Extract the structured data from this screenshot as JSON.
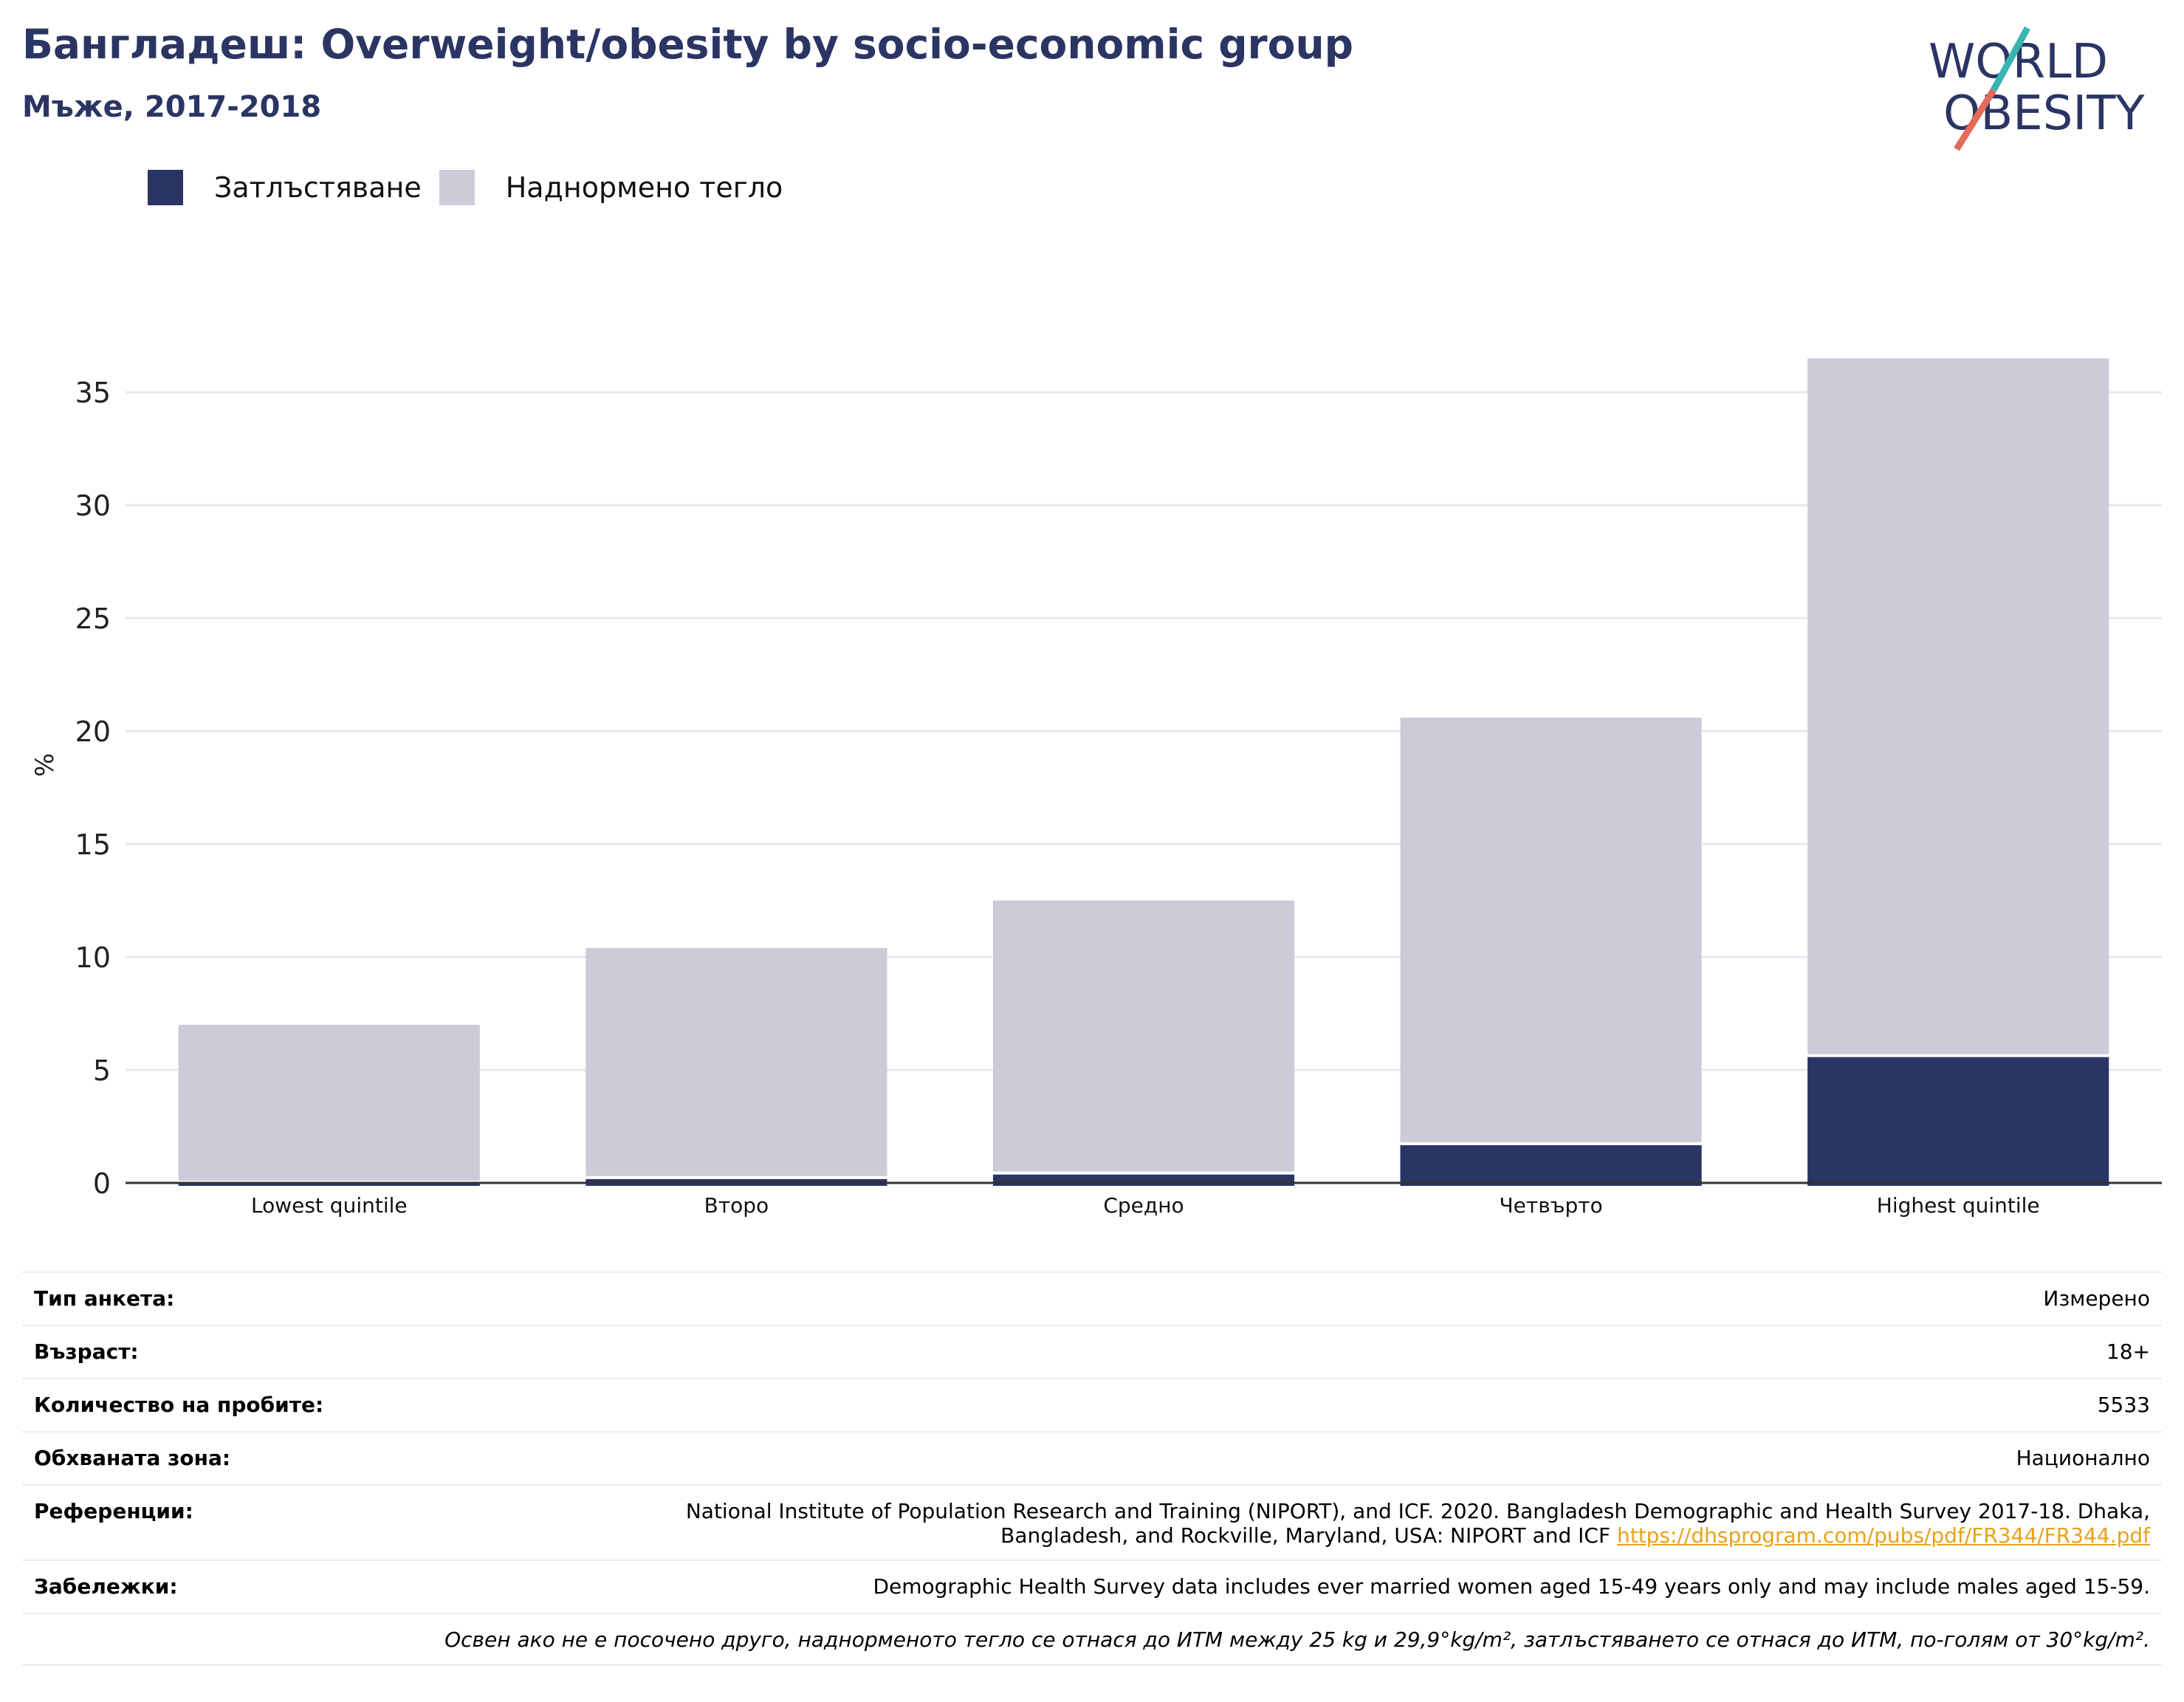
{
  "title": "Бангладеш: Overweight/obesity by socio-economic group",
  "subtitle": "Мъже, 2017-2018",
  "logo": {
    "line1": "WORLD",
    "line2": "OBESITY"
  },
  "colors": {
    "obesity": "#2a3563",
    "overweight": "#cbccd8",
    "title": "#2a3563",
    "link": "#e8a21a"
  },
  "chart_data": {
    "type": "bar",
    "stacked": true,
    "categories": [
      "Lowest quintile",
      "Второ",
      "Средно",
      "Четвърто",
      "Highest quintile"
    ],
    "series": [
      {
        "name": "Затлъстяване",
        "values": [
          0.1,
          0.3,
          0.5,
          1.8,
          5.7
        ]
      },
      {
        "name": "Наднормено тегло",
        "values": [
          6.9,
          10.1,
          12.0,
          18.8,
          30.8
        ]
      }
    ],
    "ylabel": "%",
    "ylim": [
      0,
      37
    ],
    "yticks": [
      0,
      5,
      10,
      15,
      20,
      25,
      30,
      35
    ],
    "grid": true,
    "legend": "top-left"
  },
  "info": {
    "survey_type": {
      "label": "Тип анкета:",
      "value": "Измерено"
    },
    "age": {
      "label": "Възраст:",
      "value": "18+"
    },
    "sample_size": {
      "label": "Количество на пробите:",
      "value": "5533"
    },
    "area": {
      "label": "Обхваната зона:",
      "value": "Национално"
    },
    "references": {
      "label": "Референции:",
      "text1": "National Institute of Population Research and Training (NIPORT), and ICF. 2020. Bangladesh Demographic and Health Survey 2017-18. Dhaka,",
      "text2": "Bangladesh, and Rockville, Maryland, USA: NIPORT and ICF",
      "link": "https://dhsprogram.com/pubs/pdf/FR344/FR344.pdf"
    },
    "notes": {
      "label": "Забележки:",
      "value": "Demographic Health Survey data includes ever married women aged 15-49 years only and may include males aged 15-59."
    },
    "footnote": "Освен ако не е посочено друго, наднорменото тегло се отнася до ИТМ между 25 kg и 29,9°kg/m², затлъстяването се отнася до ИТМ, по-голям от 30°kg/m²."
  }
}
